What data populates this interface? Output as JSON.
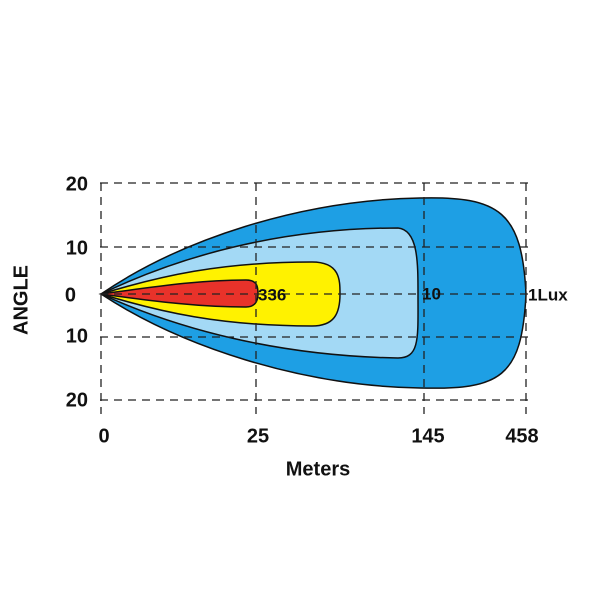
{
  "y_axis": {
    "title": "ANGLE",
    "ticks": [
      "20",
      "10",
      "0",
      "10",
      "20"
    ]
  },
  "x_axis": {
    "title": "Meters",
    "ticks": [
      "0",
      "25",
      "145",
      "458"
    ]
  },
  "contours": [
    {
      "label": "336"
    },
    {
      "label": "10"
    },
    {
      "label": "1Lux"
    }
  ]
}
